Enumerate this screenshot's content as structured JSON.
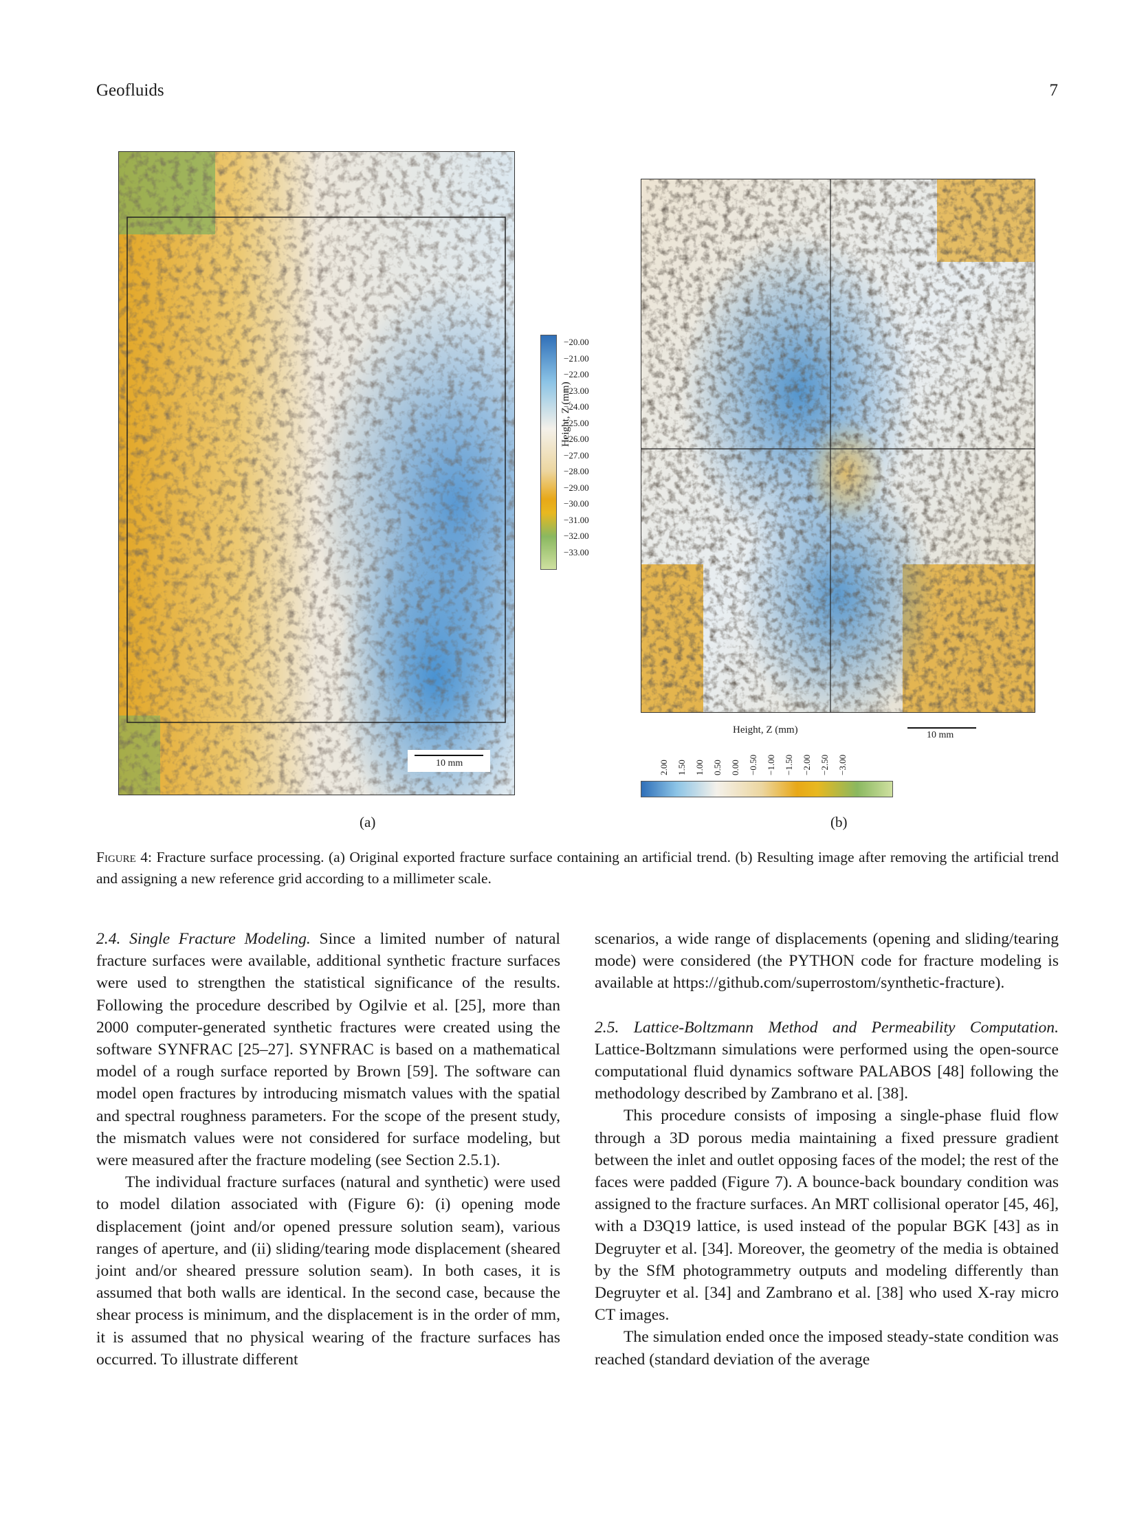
{
  "header": {
    "journal": "Geofluids",
    "page_number": "7"
  },
  "figure": {
    "panel_a": {
      "sublabel": "(a)",
      "scale_bar": "10 mm",
      "colorbar_title": "Height, Z (mm)",
      "colorbar_ticks": [
        "−20.00",
        "−21.00",
        "−22.00",
        "−23.00",
        "−24.00",
        "−25.00",
        "−26.00",
        "−27.00",
        "−28.00",
        "−29.00",
        "−30.00",
        "−31.00",
        "−32.00",
        "−33.00"
      ]
    },
    "panel_b": {
      "sublabel": "(b)",
      "scale_bar": "10 mm",
      "colorbar_title": "Height, Z (mm)",
      "colorbar_ticks": [
        "2.00",
        "1.50",
        "1.00",
        "0.50",
        "0.00",
        "−0.50",
        "−1.00",
        "−1.50",
        "−2.00",
        "−2.50",
        "−3.00"
      ]
    },
    "caption_label": "Figure 4",
    "caption_text": ": Fracture surface processing. (a) Original exported fracture surface containing an artificial trend. (b) Resulting image after removing the artificial trend and assigning a new reference grid according to a millimeter scale."
  },
  "colors": {
    "blue": "#2f6fb8",
    "white": "#f4f1ea",
    "yellow": "#e8a818",
    "green": "#8ab860"
  },
  "left_column": {
    "s24_heading": "2.4. Single Fracture Modeling.",
    "s24_p1": " Since a limited number of natural fracture surfaces were available, additional synthetic fracture surfaces were used to strengthen the statistical significance of the results. Following the procedure described by Ogilvie et al. [25], more than 2000 computer-generated synthetic fractures were created using the software SYNFRAC [25–27]. SYNFRAC is based on a mathematical model of a rough surface reported by Brown [59]. The software can model open fractures by introducing mismatch values with the spatial and spectral roughness parameters. For the scope of the present study, the mismatch values were not considered for surface modeling, but were measured after the fracture modeling (see Section 2.5.1).",
    "s24_p2": "The individual fracture surfaces (natural and synthetic) were used to model dilation associated with (Figure 6): (i) opening mode displacement (joint and/or opened pressure solution seam), various ranges of aperture, and (ii) sliding/tearing mode displacement (sheared joint and/or sheared pressure solution seam). In both cases, it is assumed that both walls are identical. In the second case, because the shear process is minimum, and the displacement is in the order of mm, it is assumed that no physical wearing of the fracture surfaces has occurred. To illustrate different"
  },
  "right_column": {
    "s24_cont": "scenarios, a wide range of displacements (opening and sliding/tearing mode) were considered (the PYTHON code for fracture modeling is available at https://github.com/superrostom/synthetic-fracture).",
    "s25_heading": "2.5. Lattice-Boltzmann Method and Permeability Computation.",
    "s25_p1": " Lattice-Boltzmann simulations were performed using the open-source computational fluid dynamics software PALABOS [48] following the methodology described by Zambrano et al. [38].",
    "s25_p2": "This procedure consists of imposing a single-phase fluid flow through a 3D porous media maintaining a fixed pressure gradient between the inlet and outlet opposing faces of the model; the rest of the faces were padded (Figure 7). A bounce-back boundary condition was assigned to the fracture surfaces. An MRT collisional operator [45, 46], with a D3Q19 lattice, is used instead of the popular BGK [43] as in Degruyter et al. [34]. Moreover, the geometry of the media is obtained by the SfM photogrammetry outputs and modeling differently than Degruyter et al. [34] and Zambrano et al. [38] who used X-ray micro CT images.",
    "s25_p3": "The simulation ended once the imposed steady-state condition was reached (standard deviation of the average"
  }
}
